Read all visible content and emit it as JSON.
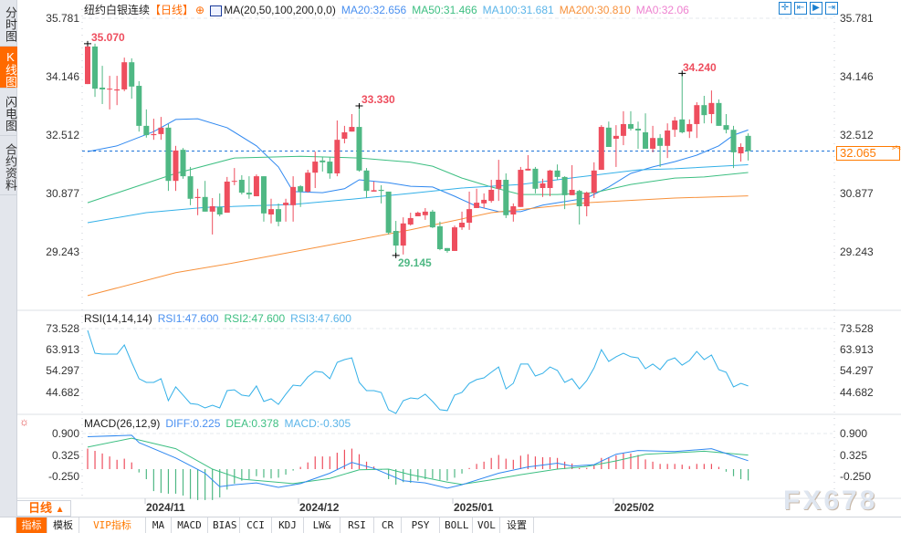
{
  "sidebar": {
    "tabs": [
      {
        "label": "分时图",
        "active": false
      },
      {
        "label": "K线图",
        "active": true
      },
      {
        "label": "闪电图",
        "active": false
      },
      {
        "label": "合约资料",
        "active": false
      }
    ]
  },
  "header": {
    "symbol": "纽约白银连续",
    "period_tag": "【日线】",
    "add_icon": "circle-plus-icon",
    "ma_label": "MA(20,50,100,200,0,0)",
    "ma_values": [
      {
        "label": "MA20:32.656",
        "color": "#2f88f0"
      },
      {
        "label": "MA50:31.466",
        "color": "#3dbf82"
      },
      {
        "label": "MA100:31.681",
        "color": "#33b0e8"
      },
      {
        "label": "MA200:30.810",
        "color": "#f7913b"
      },
      {
        "label": "MA0:32.06",
        "color": "#ee82d0"
      }
    ],
    "tools": [
      "crosshair-icon",
      "fit-range-icon",
      "play-range-icon",
      "jump-end-icon"
    ]
  },
  "colors": {
    "up": "#ee4e5e",
    "down": "#4fb884",
    "accent": "#ff6a00",
    "price_line": "#1f74d8"
  },
  "price_axis": {
    "ticks": [
      "35.781",
      "34.146",
      "32.512",
      "30.877",
      "29.243"
    ],
    "current": "32.065"
  },
  "annotations": {
    "high1": "35.070",
    "high2": "33.330",
    "low": "29.145",
    "high3": "34.240"
  },
  "rsi": {
    "title": "RSI(14,14,14)",
    "labels": [
      {
        "label": "RSI1:47.600",
        "color": "#4a90f0"
      },
      {
        "label": "RSI2:47.600",
        "color": "#3dbf82"
      },
      {
        "label": "RSI3:47.600",
        "color": "#5ab4e8"
      }
    ],
    "ticks": [
      "73.528",
      "63.913",
      "54.297",
      "44.682"
    ]
  },
  "macd": {
    "title": "MACD(26,12,9)",
    "labels": [
      {
        "label": "DIFF:0.225",
        "color": "#2f88f0"
      },
      {
        "label": "DEA:0.378",
        "color": "#3dbf82"
      },
      {
        "label": "MACD:-0.305",
        "color": "#5ab4e8"
      }
    ],
    "ticks": [
      "0.900",
      "0.325",
      "-0.250"
    ]
  },
  "x_axis": {
    "period": "日线",
    "period_icon": "triangle-up-icon",
    "dates": [
      "2024/11",
      "2024/12",
      "2025/01",
      "2025/02"
    ]
  },
  "bottom_tabs": [
    "指标",
    "模板",
    "VIP指标",
    "MA",
    "MACD",
    "BIAS",
    "CCI",
    "KDJ",
    "LW&",
    "RSI",
    "CR",
    "PSY",
    "BOLL",
    "VOL",
    "设置"
  ],
  "watermark": "FX678",
  "chart_data": {
    "type": "candlestick",
    "ohlc": [
      [
        33.94,
        35.07,
        33.94,
        34.99
      ],
      [
        34.99,
        35.07,
        33.58,
        33.81
      ],
      [
        33.84,
        34.45,
        33.38,
        33.79
      ],
      [
        33.79,
        34.17,
        33.23,
        33.81
      ],
      [
        33.76,
        34.17,
        33.35,
        33.79
      ],
      [
        33.79,
        34.68,
        33.74,
        34.55
      ],
      [
        34.55,
        34.66,
        33.53,
        33.87
      ],
      [
        33.89,
        34.02,
        32.61,
        32.77
      ],
      [
        32.77,
        33.23,
        32.44,
        32.51
      ],
      [
        32.51,
        32.97,
        32.38,
        32.54
      ],
      [
        32.54,
        33.02,
        32.38,
        32.72
      ],
      [
        32.72,
        32.82,
        30.95,
        31.23
      ],
      [
        31.23,
        32.21,
        30.95,
        32.08
      ],
      [
        32.1,
        32.15,
        31.29,
        31.36
      ],
      [
        31.36,
        31.62,
        30.55,
        30.73
      ],
      [
        30.75,
        31.01,
        30.27,
        30.78
      ],
      [
        30.78,
        31.23,
        30.37,
        30.37
      ],
      [
        30.37,
        30.75,
        29.73,
        30.52
      ],
      [
        30.5,
        30.88,
        30.24,
        30.29
      ],
      [
        30.34,
        31.34,
        30.34,
        31.21
      ],
      [
        31.21,
        31.59,
        31.11,
        31.23
      ],
      [
        31.26,
        31.39,
        30.85,
        30.9
      ],
      [
        30.9,
        31.36,
        30.73,
        30.85
      ],
      [
        30.8,
        31.41,
        30.8,
        31.36
      ],
      [
        31.36,
        31.36,
        30.09,
        30.32
      ],
      [
        30.29,
        30.73,
        30.04,
        30.44
      ],
      [
        30.44,
        30.6,
        29.96,
        30.09
      ],
      [
        30.55,
        30.73,
        30.09,
        30.62
      ],
      [
        30.55,
        31.36,
        30.09,
        31.06
      ],
      [
        31.08,
        31.11,
        30.5,
        30.93
      ],
      [
        30.93,
        31.54,
        30.9,
        31.46
      ],
      [
        31.46,
        32.05,
        31.03,
        31.77
      ],
      [
        31.8,
        31.9,
        31.49,
        31.75
      ],
      [
        31.77,
        31.9,
        31.29,
        31.44
      ],
      [
        31.44,
        32.92,
        31.36,
        32.38
      ],
      [
        32.41,
        32.77,
        32.28,
        32.59
      ],
      [
        32.61,
        33.1,
        32.61,
        32.74
      ],
      [
        32.74,
        33.33,
        31.49,
        31.52
      ],
      [
        31.52,
        31.59,
        30.75,
        30.95
      ],
      [
        30.93,
        31.21,
        30.93,
        30.97
      ],
      [
        30.98,
        31.11,
        30.6,
        30.95
      ],
      [
        30.93,
        30.93,
        29.73,
        29.78
      ],
      [
        29.83,
        30.11,
        29.145,
        29.42
      ],
      [
        29.42,
        30.21,
        29.17,
        30.04
      ],
      [
        30.01,
        30.34,
        29.98,
        30.19
      ],
      [
        30.24,
        30.37,
        30.24,
        30.34
      ],
      [
        30.27,
        30.47,
        30.14,
        30.37
      ],
      [
        30.37,
        30.42,
        29.91,
        29.93
      ],
      [
        29.96,
        30.09,
        29.29,
        29.32
      ],
      [
        29.35,
        29.35,
        29.22,
        29.27
      ],
      [
        29.27,
        29.98,
        29.27,
        29.93
      ],
      [
        29.93,
        30.37,
        29.86,
        30.06
      ],
      [
        30.06,
        30.93,
        29.86,
        30.44
      ],
      [
        30.47,
        31.01,
        30.47,
        30.62
      ],
      [
        30.6,
        30.88,
        30.47,
        30.7
      ],
      [
        30.67,
        31.26,
        30.62,
        30.98
      ],
      [
        31.01,
        31.82,
        30.67,
        31.26
      ],
      [
        31.26,
        31.44,
        30.19,
        30.27
      ],
      [
        30.29,
        30.6,
        30.09,
        30.52
      ],
      [
        30.5,
        31.62,
        30.5,
        31.54
      ],
      [
        31.52,
        31.95,
        31.52,
        31.57
      ],
      [
        31.57,
        31.62,
        30.88,
        31.01
      ],
      [
        31.03,
        31.29,
        30.78,
        31.16
      ],
      [
        31.03,
        31.54,
        30.8,
        31.52
      ],
      [
        31.52,
        31.69,
        31.26,
        31.34
      ],
      [
        31.34,
        31.36,
        30.44,
        30.83
      ],
      [
        30.83,
        31.67,
        30.83,
        30.98
      ],
      [
        30.95,
        30.98,
        30.01,
        30.52
      ],
      [
        30.52,
        30.93,
        30.24,
        30.9
      ],
      [
        30.9,
        31.75,
        30.75,
        31.52
      ],
      [
        31.54,
        32.79,
        31.54,
        32.74
      ],
      [
        32.72,
        32.89,
        32.18,
        32.18
      ],
      [
        32.41,
        32.79,
        31.62,
        32.49
      ],
      [
        32.49,
        33.18,
        32.23,
        32.82
      ],
      [
        32.82,
        33.18,
        32.64,
        32.69
      ],
      [
        32.69,
        32.89,
        32.13,
        32.64
      ],
      [
        32.59,
        33.12,
        32.13,
        32.13
      ],
      [
        32.13,
        32.77,
        32.03,
        32.43
      ],
      [
        32.43,
        32.54,
        31.62,
        32.21
      ],
      [
        32.21,
        32.84,
        31.87,
        32.64
      ],
      [
        32.66,
        33.02,
        32.46,
        32.92
      ],
      [
        32.95,
        34.24,
        32.56,
        32.59
      ],
      [
        32.61,
        32.95,
        32.43,
        32.82
      ],
      [
        32.82,
        33.43,
        32.43,
        33.35
      ],
      [
        33.35,
        33.61,
        32.84,
        33.07
      ],
      [
        33.1,
        33.76,
        32.84,
        33.41
      ],
      [
        33.41,
        33.51,
        32.77,
        32.77
      ],
      [
        32.79,
        33.1,
        32.56,
        32.66
      ],
      [
        32.66,
        32.77,
        31.59,
        32.03
      ],
      [
        32.0,
        32.28,
        31.77,
        32.18
      ],
      [
        32.49,
        32.56,
        31.8,
        32.065
      ]
    ],
    "moving_averages": {
      "MA20": [
        [
          1,
          32.05
        ],
        [
          5,
          32.21
        ],
        [
          10,
          32.61
        ],
        [
          13,
          32.95
        ],
        [
          16,
          32.97
        ],
        [
          20,
          32.72
        ],
        [
          24,
          32.21
        ],
        [
          27,
          31.62
        ],
        [
          29,
          30.93
        ],
        [
          33,
          30.9
        ],
        [
          36,
          31.01
        ],
        [
          38,
          31.26
        ],
        [
          42,
          31.18
        ],
        [
          45,
          31.08
        ],
        [
          48,
          31.06
        ],
        [
          51,
          30.8
        ],
        [
          54,
          30.52
        ],
        [
          57,
          30.37
        ],
        [
          60,
          30.37
        ],
        [
          63,
          30.55
        ],
        [
          66,
          30.65
        ],
        [
          69,
          30.75
        ],
        [
          72,
          31.06
        ],
        [
          75,
          31.44
        ],
        [
          78,
          31.62
        ],
        [
          81,
          31.77
        ],
        [
          84,
          31.95
        ],
        [
          87,
          32.21
        ],
        [
          89,
          32.51
        ],
        [
          91,
          32.656
        ]
      ],
      "MA50": [
        [
          1,
          30.62
        ],
        [
          13,
          31.44
        ],
        [
          21,
          31.87
        ],
        [
          30,
          31.92
        ],
        [
          38,
          31.87
        ],
        [
          45,
          31.75
        ],
        [
          48,
          31.64
        ],
        [
          52,
          31.31
        ],
        [
          56,
          31.06
        ],
        [
          60,
          30.85
        ],
        [
          65,
          30.85
        ],
        [
          70,
          30.9
        ],
        [
          75,
          31.13
        ],
        [
          81,
          31.31
        ],
        [
          85,
          31.34
        ],
        [
          91,
          31.466
        ]
      ],
      "MA100": [
        [
          1,
          30.06
        ],
        [
          9,
          30.34
        ],
        [
          17,
          30.49
        ],
        [
          29,
          30.57
        ],
        [
          37,
          30.72
        ],
        [
          45,
          30.88
        ],
        [
          52,
          31.03
        ],
        [
          60,
          31.13
        ],
        [
          68,
          31.34
        ],
        [
          76,
          31.54
        ],
        [
          81,
          31.57
        ],
        [
          91,
          31.681
        ]
      ],
      "MA200": [
        [
          1,
          28.02
        ],
        [
          13,
          28.66
        ],
        [
          21,
          28.94
        ],
        [
          33,
          29.4
        ],
        [
          45,
          29.86
        ],
        [
          56,
          30.34
        ],
        [
          69,
          30.62
        ],
        [
          81,
          30.75
        ],
        [
          91,
          30.81
        ]
      ]
    },
    "ylim": [
      29.243,
      35.781
    ],
    "rsi": [
      72.7,
      62.4,
      62.0,
      62.0,
      62.0,
      66.1,
      58.3,
      50.9,
      49.2,
      49.2,
      50.9,
      41.0,
      47.2,
      43.5,
      39.7,
      39.3,
      37.7,
      38.9,
      37.7,
      45.5,
      45.9,
      43.5,
      43.0,
      47.6,
      40.6,
      41.8,
      39.3,
      43.9,
      48.0,
      47.6,
      51.7,
      54.2,
      53.8,
      50.9,
      58.3,
      59.5,
      60.3,
      49.2,
      45.5,
      45.5,
      44.7,
      36.9,
      35.2,
      41.0,
      42.2,
      41.8,
      43.9,
      40.6,
      36.9,
      36.5,
      43.5,
      44.7,
      48.8,
      50.5,
      51.3,
      53.8,
      56.2,
      46.3,
      48.8,
      57.5,
      57.5,
      52.1,
      53.3,
      56.2,
      54.6,
      49.2,
      50.9,
      46.3,
      50.0,
      55.8,
      64.0,
      58.7,
      60.8,
      62.4,
      60.8,
      60.3,
      55.4,
      57.5,
      55.0,
      59.1,
      60.3,
      57.0,
      59.1,
      63.2,
      59.5,
      61.6,
      55.0,
      53.8,
      47.2,
      48.8,
      47.6
    ],
    "macd_hist": [
      0.55,
      0.49,
      0.42,
      0.34,
      0.25,
      0.28,
      0.18,
      -0.09,
      -0.27,
      -0.59,
      -0.64,
      -0.66,
      -0.66,
      -0.71,
      -0.8,
      -0.83,
      -0.83,
      -0.83,
      -0.76,
      -0.55,
      -0.39,
      -0.31,
      -0.27,
      -0.19,
      -0.23,
      -0.25,
      -0.23,
      -0.15,
      -0.04,
      0.06,
      0.18,
      0.34,
      0.34,
      0.34,
      0.44,
      0.52,
      0.55,
      0.4,
      0.2,
      0.07,
      -0.02,
      -0.27,
      -0.42,
      -0.35,
      -0.37,
      -0.31,
      -0.27,
      -0.25,
      -0.29,
      -0.31,
      -0.23,
      -0.12,
      0.03,
      0.14,
      0.2,
      0.3,
      0.38,
      0.28,
      0.25,
      0.36,
      0.4,
      0.34,
      0.32,
      0.32,
      0.3,
      0.2,
      0.15,
      0.03,
      0.03,
      0.12,
      0.3,
      0.32,
      0.37,
      0.42,
      0.42,
      0.38,
      0.26,
      0.2,
      0.14,
      0.14,
      0.14,
      0.12,
      0.08,
      0.14,
      0.14,
      0.14,
      0.06,
      -0.07,
      -0.19,
      -0.27,
      -0.305
    ],
    "diff": [
      [
        1,
        0.87
      ],
      [
        7,
        0.91
      ],
      [
        8,
        0.71
      ],
      [
        13,
        0.3
      ],
      [
        17,
        -0.11
      ],
      [
        19,
        -0.47
      ],
      [
        21,
        -0.42
      ],
      [
        24,
        -0.37
      ],
      [
        27,
        -0.49
      ],
      [
        30,
        -0.39
      ],
      [
        34,
        -0.11
      ],
      [
        37,
        0.18
      ],
      [
        40,
        0.02
      ],
      [
        44,
        -0.31
      ],
      [
        47,
        -0.37
      ],
      [
        50,
        -0.51
      ],
      [
        52,
        -0.42
      ],
      [
        57,
        -0.11
      ],
      [
        61,
        0.06
      ],
      [
        65,
        0.16
      ],
      [
        67,
        0.08
      ],
      [
        70,
        0.12
      ],
      [
        73,
        0.4
      ],
      [
        76,
        0.5
      ],
      [
        81,
        0.47
      ],
      [
        86,
        0.55
      ],
      [
        88,
        0.42
      ],
      [
        91,
        0.225
      ]
    ],
    "dea": [
      [
        1,
        0.59
      ],
      [
        7,
        0.83
      ],
      [
        13,
        0.55
      ],
      [
        18,
        0.0
      ],
      [
        22,
        -0.27
      ],
      [
        29,
        -0.39
      ],
      [
        34,
        -0.25
      ],
      [
        38,
        -0.02
      ],
      [
        42,
        0.0
      ],
      [
        45,
        -0.15
      ],
      [
        50,
        -0.35
      ],
      [
        52,
        -0.41
      ],
      [
        56,
        -0.29
      ],
      [
        60,
        -0.15
      ],
      [
        65,
        0.0
      ],
      [
        69,
        0.07
      ],
      [
        73,
        0.22
      ],
      [
        77,
        0.4
      ],
      [
        85,
        0.48
      ],
      [
        91,
        0.378
      ]
    ]
  }
}
